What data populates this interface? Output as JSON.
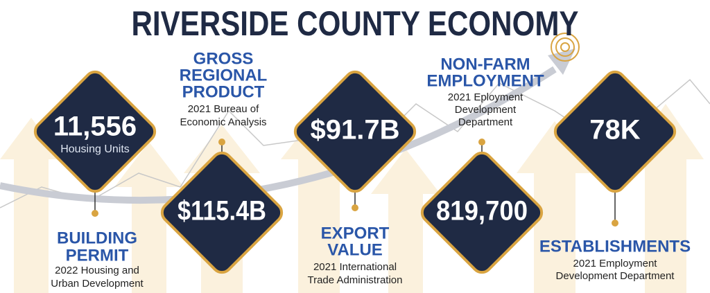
{
  "title": "RIVERSIDE COUNTY ECONOMY",
  "items": [
    {
      "value": "11,556",
      "unit": "Housing Units",
      "heading": [
        "BUILDING",
        "PERMIT"
      ],
      "source": [
        "2022 Housing and",
        "Urban Development"
      ]
    },
    {
      "value": "$115.4B",
      "heading": [
        "GROSS",
        "REGIONAL",
        "PRODUCT"
      ],
      "source": [
        "2021 Bureau of",
        "Economic Analysis"
      ]
    },
    {
      "value": "$91.7B",
      "heading": [
        "EXPORT",
        "VALUE"
      ],
      "source": [
        "2021 International",
        "Trade Administration"
      ]
    },
    {
      "value": "819,700",
      "heading": [
        "NON-FARM",
        "EMPLOYMENT"
      ],
      "source": [
        "2021 Eployment",
        "Development",
        "Department"
      ]
    },
    {
      "value": "78K",
      "heading": [
        "ESTABLISHMENTS"
      ],
      "source": [
        "2021 Employment",
        "Development Department"
      ]
    }
  ]
}
